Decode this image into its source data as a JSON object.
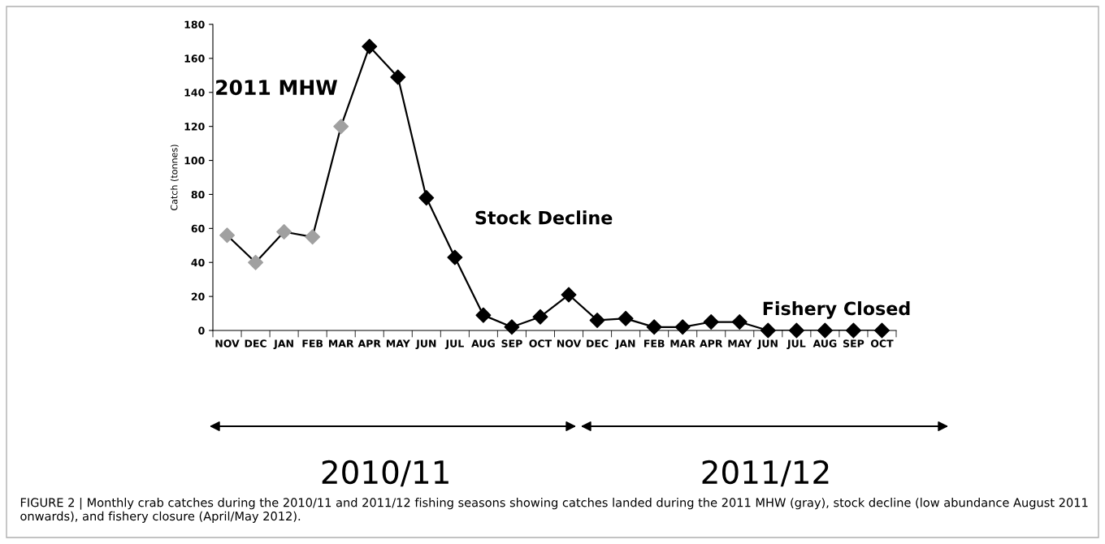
{
  "chart_data": {
    "type": "line",
    "ylabel": "Catch (tonnes)",
    "categories": [
      "NOV",
      "DEC",
      "JAN",
      "FEB",
      "MAR",
      "APR",
      "MAY",
      "JUN",
      "JUL",
      "AUG",
      "SEP",
      "OCT",
      "NOV",
      "DEC",
      "JAN",
      "FEB",
      "MAR",
      "APR",
      "MAY",
      "JUN",
      "JUL",
      "AUG",
      "SEP",
      "OCT"
    ],
    "series": [
      {
        "color": "#000000",
        "values": [
          56,
          40,
          58,
          55,
          120,
          167,
          149,
          78,
          43,
          9,
          2,
          8,
          21,
          6,
          7,
          2,
          2,
          5,
          5,
          0,
          0,
          0,
          0,
          0
        ],
        "colors": [
          "#a0a0a0",
          "#a0a0a0",
          "#a0a0a0",
          "#a0a0a0",
          "#a0a0a0",
          "#000000",
          "#000000",
          "#000000",
          "#000000",
          "#000000",
          "#000000",
          "#000000",
          "#000000",
          "#000000",
          "#000000",
          "#000000",
          "#000000",
          "#000000",
          "#000000",
          "#000000",
          "#000000",
          "#000000",
          "#000000",
          "#000000"
        ]
      }
    ],
    "ylim": [
      0,
      180
    ],
    "yticks": [
      0,
      20,
      40,
      60,
      80,
      100,
      120,
      140,
      160,
      180
    ],
    "marker": "diamond",
    "line_style": "solid",
    "grid": false,
    "legend": false,
    "annotations": [
      "2011 MHW",
      "Stock Decline",
      "Fishery Closed",
      "2010/11",
      "2011/12",
      "FIGURE 2 | Monthly crab catches during the 2010/11 and 2011/12 fishing seasons showing catches landed during the 2011 MHW (gray), stock decline (low abundance August 2011 onwards), and fishery closure (April/May 2012)."
    ]
  }
}
